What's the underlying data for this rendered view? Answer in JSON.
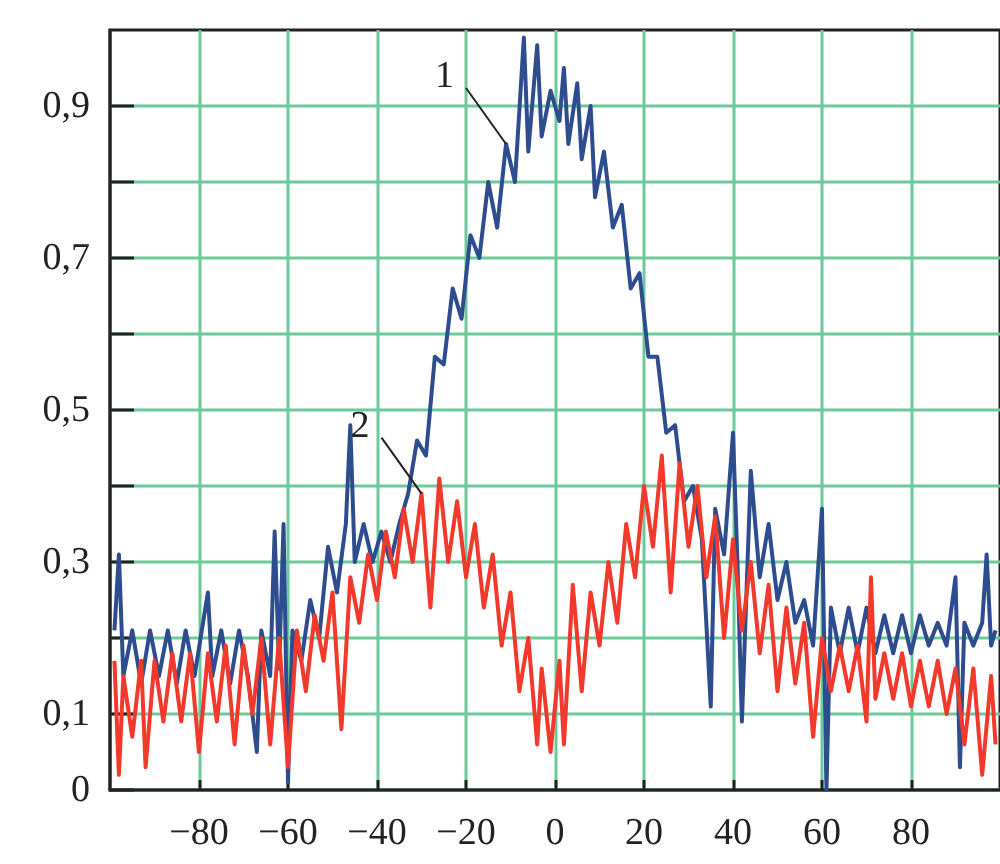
{
  "chart_data": {
    "type": "line",
    "xlim": [
      -100,
      100
    ],
    "xticks": [
      {
        "value": -80,
        "label": "−80"
      },
      {
        "value": -60,
        "label": "−60"
      },
      {
        "value": -40,
        "label": "−40"
      },
      {
        "value": -20,
        "label": "−20"
      },
      0,
      20,
      40,
      60,
      80
    ],
    "ylim": [
      0,
      1
    ],
    "yticks": [
      0,
      {
        "value": 0.1,
        "label": "0,1"
      },
      {
        "value": 0.2,
        "label": null
      },
      {
        "value": 0.3,
        "label": "0,3"
      },
      {
        "value": 0.4,
        "label": null
      },
      {
        "value": 0.5,
        "label": "0,5"
      },
      {
        "value": 0.6,
        "label": null
      },
      {
        "value": 0.7,
        "label": "0,7"
      },
      {
        "value": 0.8,
        "label": null
      },
      {
        "value": 0.9,
        "label": "0,9"
      }
    ],
    "grid": true,
    "legend": false,
    "marker": "none",
    "series": [
      {
        "name": "1",
        "color": "#2e4d8e",
        "x": [
          -99,
          -98,
          -97,
          -95,
          -93,
          -91,
          -89,
          -87,
          -85,
          -83,
          -81,
          -78,
          -77,
          -75,
          -73,
          -71,
          -69,
          -67,
          -66,
          -64,
          -63,
          -62,
          -61,
          -60,
          -59,
          -57,
          -55,
          -53,
          -51,
          -49,
          -47,
          -46,
          -45,
          -43,
          -41,
          -39,
          -37,
          -35,
          -33,
          -31,
          -29,
          -27,
          -25,
          -23,
          -21,
          -19,
          -17,
          -15,
          -13,
          -11,
          -9,
          -7,
          -6,
          -4,
          -3,
          -1,
          1,
          2,
          3,
          5,
          6,
          8,
          9,
          11,
          13,
          15,
          17,
          19,
          21,
          23,
          25,
          27,
          29,
          31,
          33,
          35,
          36,
          38,
          40,
          41,
          42,
          44,
          46,
          48,
          50,
          52,
          54,
          56,
          58,
          60,
          61,
          62,
          64,
          66,
          68,
          70,
          72,
          74,
          76,
          78,
          80,
          82,
          84,
          86,
          88,
          90,
          91,
          92,
          94,
          96,
          97,
          98,
          99
        ],
        "values": [
          0.21,
          0.31,
          0.15,
          0.21,
          0.14,
          0.21,
          0.15,
          0.21,
          0.14,
          0.21,
          0.15,
          0.26,
          0.15,
          0.21,
          0.14,
          0.21,
          0.15,
          0.05,
          0.21,
          0.15,
          0.34,
          0.16,
          0.35,
          0.01,
          0.21,
          0.17,
          0.25,
          0.2,
          0.32,
          0.26,
          0.35,
          0.48,
          0.3,
          0.35,
          0.3,
          0.34,
          0.3,
          0.35,
          0.39,
          0.46,
          0.44,
          0.57,
          0.56,
          0.66,
          0.62,
          0.73,
          0.7,
          0.8,
          0.74,
          0.85,
          0.8,
          0.99,
          0.84,
          0.98,
          0.86,
          0.92,
          0.88,
          0.95,
          0.85,
          0.93,
          0.83,
          0.9,
          0.78,
          0.84,
          0.74,
          0.77,
          0.66,
          0.68,
          0.57,
          0.57,
          0.47,
          0.48,
          0.38,
          0.4,
          0.33,
          0.11,
          0.37,
          0.31,
          0.47,
          0.3,
          0.09,
          0.42,
          0.28,
          0.35,
          0.25,
          0.3,
          0.22,
          0.25,
          0.19,
          0.37,
          0.0,
          0.24,
          0.18,
          0.24,
          0.18,
          0.24,
          0.18,
          0.23,
          0.18,
          0.23,
          0.18,
          0.23,
          0.19,
          0.22,
          0.19,
          0.28,
          0.03,
          0.22,
          0.19,
          0.22,
          0.31,
          0.19,
          0.21
        ]
      },
      {
        "name": "2",
        "color": "#f2392b",
        "x": [
          -99,
          -98,
          -97,
          -95,
          -93,
          -92,
          -90,
          -88,
          -86,
          -84,
          -82,
          -80,
          -78,
          -76,
          -74,
          -72,
          -70,
          -68,
          -66,
          -64,
          -62,
          -60,
          -58,
          -56,
          -54,
          -52,
          -50,
          -48,
          -46,
          -44,
          -42,
          -40,
          -38,
          -36,
          -34,
          -32,
          -30,
          -28,
          -26,
          -24,
          -22,
          -20,
          -18,
          -16,
          -14,
          -12,
          -10,
          -8,
          -6,
          -4,
          -3,
          -1,
          1,
          2,
          4,
          6,
          8,
          10,
          12,
          14,
          16,
          18,
          20,
          22,
          24,
          26,
          28,
          30,
          32,
          34,
          36,
          38,
          40,
          42,
          44,
          46,
          48,
          50,
          52,
          54,
          56,
          58,
          60,
          62,
          64,
          66,
          68,
          70,
          71,
          72,
          74,
          76,
          78,
          80,
          82,
          84,
          86,
          88,
          90,
          92,
          94,
          96,
          98,
          99
        ],
        "values": [
          0.17,
          0.02,
          0.15,
          0.07,
          0.17,
          0.03,
          0.17,
          0.09,
          0.18,
          0.09,
          0.18,
          0.05,
          0.18,
          0.09,
          0.19,
          0.06,
          0.19,
          0.1,
          0.2,
          0.06,
          0.2,
          0.03,
          0.21,
          0.13,
          0.23,
          0.17,
          0.26,
          0.08,
          0.28,
          0.22,
          0.31,
          0.25,
          0.34,
          0.28,
          0.37,
          0.3,
          0.39,
          0.24,
          0.41,
          0.3,
          0.38,
          0.28,
          0.35,
          0.24,
          0.31,
          0.19,
          0.26,
          0.13,
          0.2,
          0.06,
          0.16,
          0.05,
          0.17,
          0.06,
          0.27,
          0.13,
          0.26,
          0.19,
          0.3,
          0.22,
          0.35,
          0.28,
          0.4,
          0.32,
          0.44,
          0.26,
          0.43,
          0.32,
          0.4,
          0.28,
          0.36,
          0.2,
          0.33,
          0.21,
          0.3,
          0.18,
          0.27,
          0.13,
          0.24,
          0.14,
          0.22,
          0.07,
          0.2,
          0.13,
          0.19,
          0.13,
          0.19,
          0.09,
          0.28,
          0.12,
          0.18,
          0.12,
          0.18,
          0.11,
          0.17,
          0.11,
          0.17,
          0.1,
          0.16,
          0.06,
          0.16,
          0.02,
          0.15,
          0.06
        ]
      }
    ]
  }
}
